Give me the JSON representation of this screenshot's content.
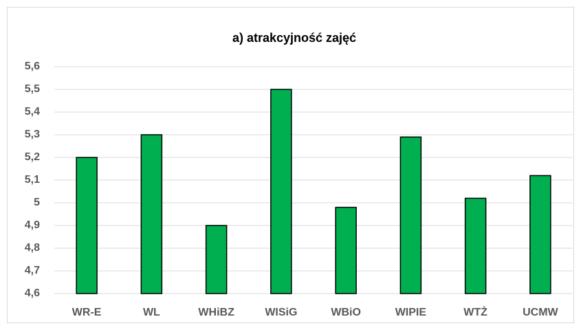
{
  "chart_data": {
    "type": "bar",
    "title": "a) atrakcyjność zajęć",
    "categories": [
      "WR-E",
      "WL",
      "WHiBZ",
      "WISiG",
      "WBiO",
      "WIPIE",
      "WTŻ",
      "UCMW"
    ],
    "values": [
      5.2,
      5.3,
      4.9,
      5.5,
      4.98,
      5.29,
      5.02,
      5.12
    ],
    "color": "#00b050",
    "ylim": [
      4.6,
      5.6
    ],
    "yticks": [
      {
        "value": 4.6,
        "label": "4,6"
      },
      {
        "value": 4.7,
        "label": "4,7"
      },
      {
        "value": 4.8,
        "label": "4,8"
      },
      {
        "value": 4.9,
        "label": "4,9"
      },
      5,
      {
        "value": 5.1,
        "label": "5,1"
      },
      {
        "value": 5.2,
        "label": "5,2"
      },
      {
        "value": 5.3,
        "label": "5,3"
      },
      {
        "value": 5.4,
        "label": "5,4"
      },
      {
        "value": 5.5,
        "label": "5,5"
      },
      {
        "value": 5.6,
        "label": "5,6"
      }
    ],
    "grid": true
  }
}
